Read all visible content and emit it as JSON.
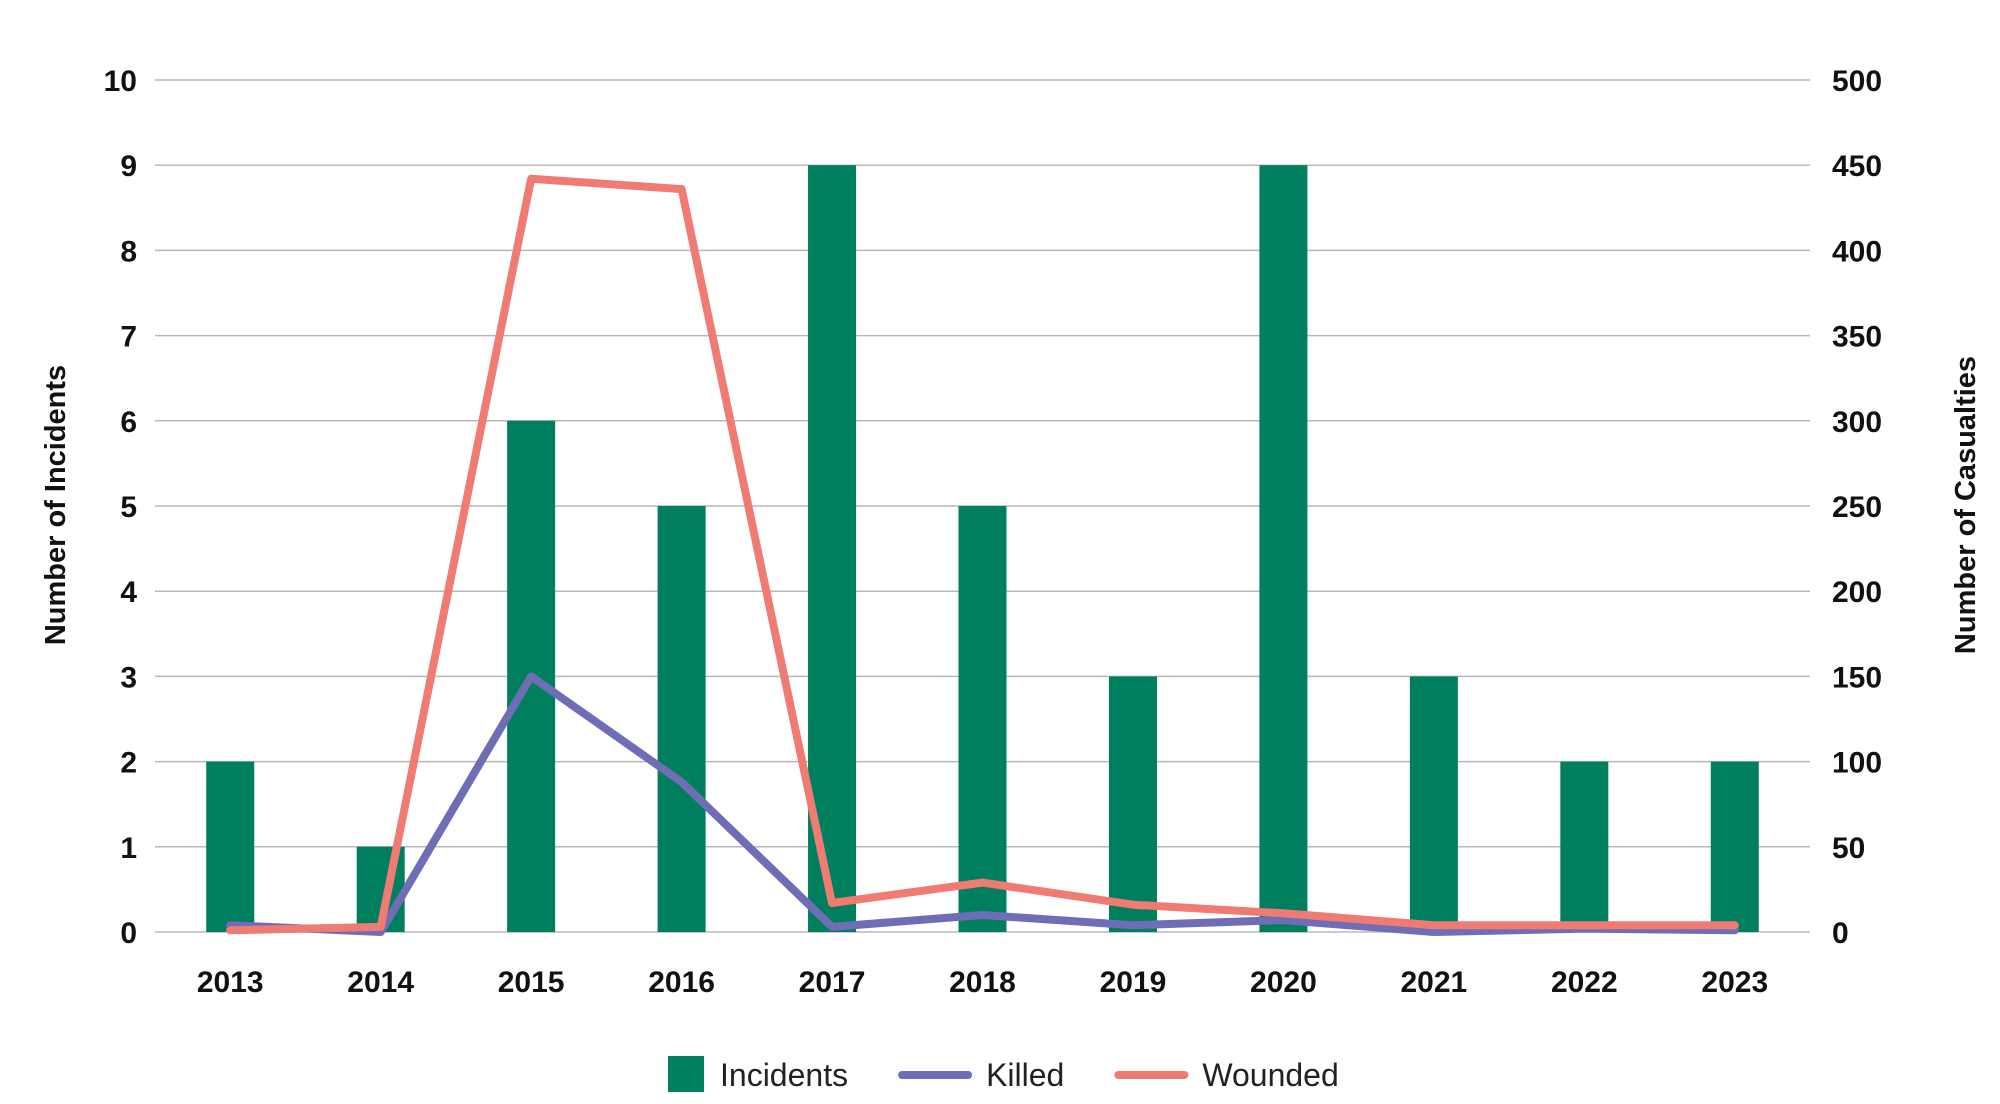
{
  "chart_data": {
    "type": "bar",
    "categories": [
      "2013",
      "2014",
      "2015",
      "2016",
      "2017",
      "2018",
      "2019",
      "2020",
      "2021",
      "2022",
      "2023"
    ],
    "series": [
      {
        "name": "Incidents",
        "kind": "bar",
        "axis": "left",
        "color": "#007f5f",
        "values": [
          2,
          1,
          6,
          5,
          9,
          5,
          3,
          9,
          3,
          2,
          2
        ]
      },
      {
        "name": "Killed",
        "kind": "line",
        "axis": "right",
        "color": "#6e6db5",
        "values": [
          4,
          0,
          150,
          88,
          3,
          10,
          4,
          7,
          0,
          2,
          1
        ]
      },
      {
        "name": "Wounded",
        "kind": "line",
        "axis": "right",
        "color": "#f07b73",
        "values": [
          1,
          3,
          442,
          436,
          17,
          29,
          16,
          11,
          4,
          4,
          4
        ]
      }
    ],
    "ylabel": "Number of Incidents",
    "y2label": "Number of Casualties",
    "ylim": [
      0,
      10
    ],
    "y2lim": [
      0,
      500
    ],
    "yticks": [
      "0",
      "1",
      "2",
      "3",
      "4",
      "5",
      "6",
      "7",
      "8",
      "9",
      "10"
    ],
    "y2ticks": [
      "0",
      "50",
      "100",
      "150",
      "200",
      "250",
      "300",
      "350",
      "400",
      "450",
      "500"
    ],
    "grid": true,
    "legend_position": "bottom-center"
  }
}
